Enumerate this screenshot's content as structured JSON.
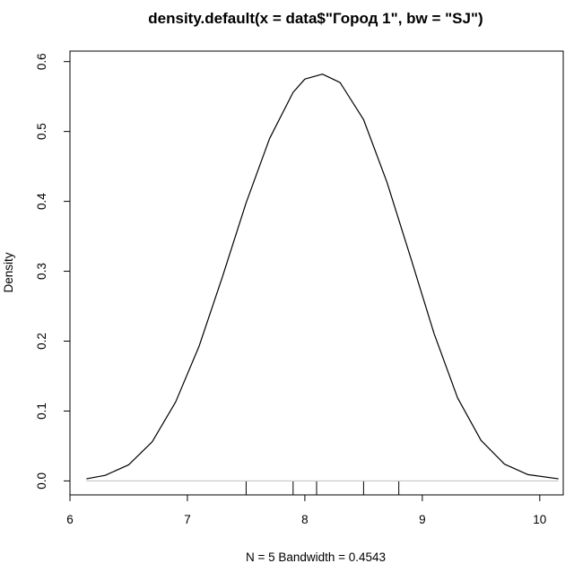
{
  "chart_data": {
    "type": "line",
    "title": "density.default(x = data$\"Город 1\", bw = \"SJ\")",
    "xlabel": "N = 5   Bandwidth = 0.4543",
    "ylabel": "Density",
    "xlim": [
      6,
      10.2
    ],
    "ylim": [
      -0.02,
      0.615
    ],
    "xticks": [
      6,
      7,
      8,
      9,
      10
    ],
    "yticks": [
      0.0,
      0.1,
      0.2,
      0.3,
      0.4,
      0.5,
      0.6
    ],
    "xtick_labels": [
      "6",
      "7",
      "8",
      "9",
      "10"
    ],
    "ytick_labels": [
      "0.0",
      "0.1",
      "0.2",
      "0.3",
      "0.4",
      "0.5",
      "0.6"
    ],
    "rug": [
      7.5,
      7.9,
      8.1,
      8.5,
      8.8
    ],
    "bandwidth": 0.4543,
    "n": 5,
    "x_range": [
      6.14,
      10.16
    ],
    "series": [
      {
        "x": [
          6.14,
          6.3,
          6.5,
          6.7,
          6.9,
          7.1,
          7.3,
          7.5,
          7.7,
          7.9,
          8.0,
          8.15,
          8.3,
          8.5,
          8.7,
          8.9,
          9.1,
          9.3,
          9.5,
          9.7,
          9.9,
          10.16
        ],
        "y": [
          0.003,
          0.008,
          0.023,
          0.056,
          0.113,
          0.193,
          0.293,
          0.398,
          0.49,
          0.556,
          0.575,
          0.582,
          0.57,
          0.517,
          0.427,
          0.32,
          0.211,
          0.119,
          0.058,
          0.024,
          0.009,
          0.003
        ]
      }
    ]
  },
  "colors": {
    "line": "#000000",
    "axis": "#000000",
    "rug": "#000000",
    "zero_line": "#bebebe",
    "background": "#ffffff"
  }
}
